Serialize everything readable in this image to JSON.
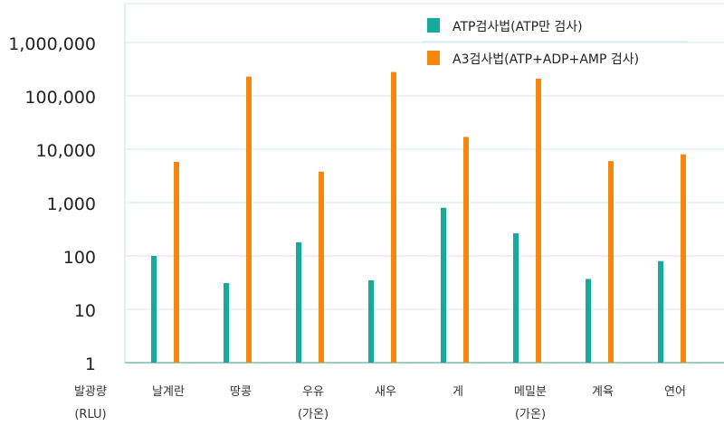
{
  "chart_data": {
    "type": "bar",
    "scale": "log",
    "ylim": [
      1,
      1000000
    ],
    "y_ticks": [
      1,
      10,
      100,
      1000,
      10000,
      100000,
      1000000
    ],
    "y_tick_labels": [
      "1",
      "10",
      "100",
      "1,000",
      "10,000",
      "100,000",
      "1,000,000"
    ],
    "ylabel": [
      "발광량",
      "(RLU)"
    ],
    "categories": [
      [
        "날계란"
      ],
      [
        "땅콩"
      ],
      [
        "우유",
        "(가온)"
      ],
      [
        "새우"
      ],
      [
        "게"
      ],
      [
        "메밀분",
        "(가온)"
      ],
      [
        "계육"
      ],
      [
        "연어"
      ]
    ],
    "series": [
      {
        "name": "ATP검사법(ATP만 검사)",
        "color": "#17a99c",
        "values": [
          100,
          31,
          180,
          35,
          800,
          265,
          37,
          80
        ]
      },
      {
        "name": "A3검사법(ATP+ADP+AMP 검사)",
        "color": "#f5870f",
        "values": [
          5800,
          230000,
          3800,
          280000,
          17000,
          210000,
          6000,
          8000
        ]
      }
    ],
    "grid": true,
    "legend": "top-right"
  }
}
